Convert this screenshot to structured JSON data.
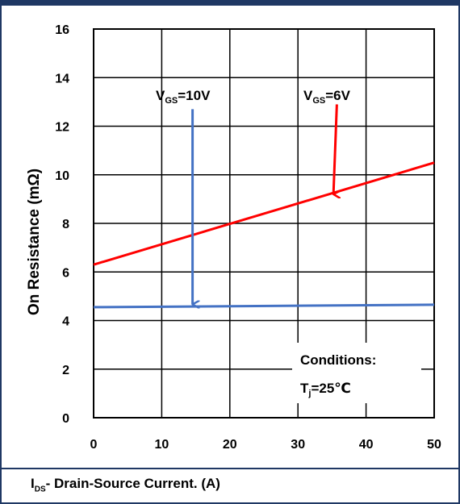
{
  "chart_data": {
    "type": "line",
    "ylabel": "On Resistance (mΩ)",
    "xlabel_main": "I",
    "xlabel_sub": "DS",
    "xlabel_rest": "- Drain-Source Current. (A)",
    "xlim": [
      0,
      50
    ],
    "ylim": [
      0,
      16
    ],
    "x_ticks": [
      "0",
      "10",
      "20",
      "30",
      "40",
      "50"
    ],
    "y_ticks": [
      "0",
      "2",
      "4",
      "6",
      "8",
      "10",
      "12",
      "14",
      "16"
    ],
    "grid": true,
    "series": [
      {
        "name": "VGS=6V",
        "color": "#ff0000",
        "x": [
          0,
          50
        ],
        "y": [
          6.3,
          10.5
        ]
      },
      {
        "name": "VGS=10V",
        "color": "#4472c4",
        "x": [
          0,
          50
        ],
        "y": [
          4.55,
          4.65
        ]
      }
    ],
    "annotations": {
      "vgs10": {
        "main": "V",
        "sub": "GS",
        "rest": "=10V",
        "x": 15,
        "y": 13.4,
        "arrow_from": [
          15,
          12.7
        ],
        "arrow_to": [
          15,
          4.6
        ],
        "color": "#4472c4"
      },
      "vgs6": {
        "main": "V",
        "sub": "GS",
        "rest": "=6V",
        "x": 35,
        "y": 13.4,
        "arrow_from": [
          35,
          12.9
        ],
        "arrow_to": [
          34.5,
          9.2
        ],
        "color": "#ff0000"
      },
      "conditions": {
        "line1": "Conditions:",
        "line2_main": "T",
        "line2_sub": "j",
        "line2_rest": "=25℃"
      }
    }
  }
}
